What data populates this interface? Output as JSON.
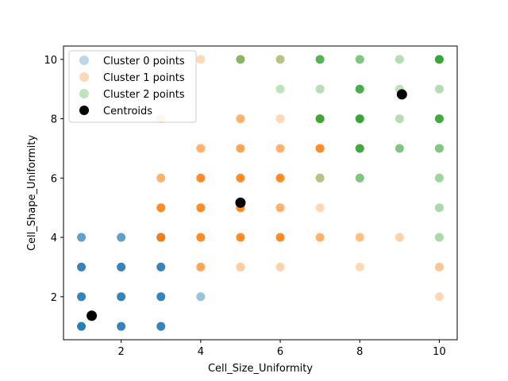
{
  "chart_data": {
    "type": "scatter",
    "title": "",
    "xlabel": "Cell_Size_Uniformity",
    "ylabel": "Cell_Shape_Uniformity",
    "xlim": [
      0.55,
      10.45
    ],
    "ylim": [
      0.55,
      10.45
    ],
    "xticks": [
      2,
      4,
      6,
      8,
      10
    ],
    "yticks": [
      2,
      4,
      6,
      8,
      10
    ],
    "grid": false,
    "legend_position": "top-left",
    "series": [
      {
        "name": "Cluster 0 points",
        "color": "#1f77b4",
        "x": [
          1,
          1,
          1,
          1,
          2,
          2,
          2,
          2,
          3,
          3,
          3,
          3,
          4
        ],
        "y": [
          1,
          2,
          3,
          4,
          1,
          2,
          3,
          4,
          1,
          2,
          3,
          4,
          2
        ],
        "alpha": [
          0.95,
          0.9,
          0.9,
          0.7,
          0.9,
          0.9,
          0.9,
          0.7,
          0.9,
          0.9,
          0.9,
          0.9,
          0.45
        ]
      },
      {
        "name": "Cluster 1 points",
        "color": "#ff7f0e",
        "x": [
          3,
          3,
          3,
          3,
          4,
          4,
          4,
          4,
          4,
          4,
          5,
          5,
          5,
          5,
          5,
          5,
          5,
          6,
          6,
          6,
          6,
          6,
          6,
          6,
          7,
          7,
          7,
          7,
          7,
          8,
          8,
          9,
          10,
          10
        ],
        "y": [
          4,
          5,
          6,
          8,
          3,
          4,
          5,
          6,
          7,
          10,
          3,
          4,
          5,
          6,
          7,
          8,
          10,
          3,
          4,
          5,
          6,
          7,
          8,
          10,
          4,
          5,
          6,
          7,
          8,
          3,
          4,
          4,
          2,
          3
        ],
        "alpha": [
          0.9,
          0.9,
          0.6,
          0.35,
          0.7,
          0.9,
          0.9,
          0.9,
          0.6,
          0.3,
          0.4,
          0.9,
          0.9,
          0.9,
          0.7,
          0.6,
          0.35,
          0.35,
          0.9,
          0.6,
          0.9,
          0.6,
          0.3,
          0.3,
          0.6,
          0.3,
          0.3,
          0.9,
          0.45,
          0.3,
          0.5,
          0.35,
          0.3,
          0.45
        ]
      },
      {
        "name": "Cluster 2 points",
        "color": "#2ca02c",
        "x": [
          5,
          6,
          6,
          7,
          7,
          7,
          7,
          8,
          8,
          8,
          8,
          8,
          9,
          9,
          9,
          9,
          10,
          10,
          10,
          10,
          10,
          10,
          10
        ],
        "y": [
          10,
          9,
          10,
          6,
          8,
          9,
          10,
          6,
          7,
          8,
          9,
          10,
          7,
          8,
          9,
          10,
          4,
          5,
          6,
          7,
          8,
          9,
          10
        ],
        "alpha": [
          0.55,
          0.3,
          0.35,
          0.35,
          0.9,
          0.35,
          0.8,
          0.6,
          0.9,
          0.95,
          0.85,
          0.6,
          0.6,
          0.35,
          0.3,
          0.35,
          0.4,
          0.4,
          0.45,
          0.6,
          0.9,
          0.35,
          0.95
        ]
      },
      {
        "name": "Centroids",
        "color": "#000000",
        "x": [
          1.26,
          5.0,
          9.06
        ],
        "y": [
          1.36,
          5.17,
          8.82
        ]
      }
    ]
  }
}
